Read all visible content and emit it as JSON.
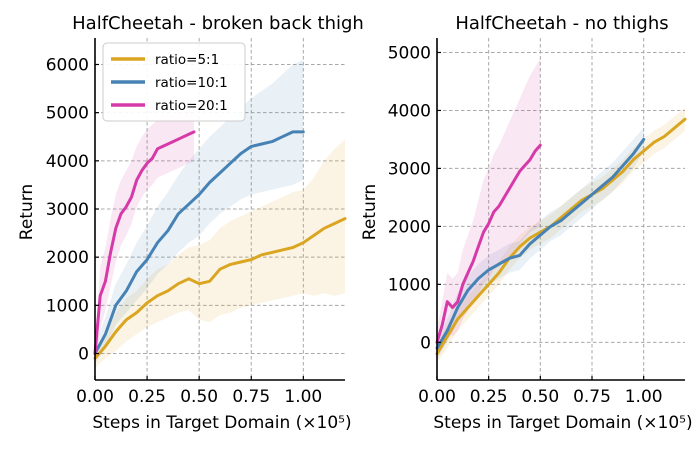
{
  "chart_data": [
    {
      "type": "line",
      "title": "HalfCheetah - broken back thigh",
      "xlabel": "Steps in Target Domain (×10⁵)",
      "ylabel": "Return",
      "xlim": [
        0,
        1.2
      ],
      "ylim": [
        -550,
        6550
      ],
      "xticks": [
        "0.00",
        "0.25",
        "0.50",
        "0.75",
        "1.00"
      ],
      "xtick_values": [
        0,
        0.25,
        0.5,
        0.75,
        1.0
      ],
      "yticks": [
        "0",
        "1000",
        "2000",
        "3000",
        "4000",
        "5000",
        "6000"
      ],
      "ytick_values": [
        0,
        1000,
        2000,
        3000,
        4000,
        5000,
        6000
      ],
      "grid": true,
      "legend": "top-left",
      "series": [
        {
          "name": "ratio=5:1",
          "color": "#daa520",
          "x": [
            0,
            0.05,
            0.1,
            0.15,
            0.2,
            0.25,
            0.3,
            0.35,
            0.4,
            0.45,
            0.5,
            0.55,
            0.6,
            0.65,
            0.7,
            0.75,
            0.8,
            0.85,
            0.9,
            0.95,
            1.0,
            1.05,
            1.1,
            1.15,
            1.2
          ],
          "values": [
            -100,
            150,
            450,
            700,
            850,
            1050,
            1200,
            1300,
            1450,
            1550,
            1450,
            1500,
            1750,
            1850,
            1900,
            1950,
            2050,
            2100,
            2150,
            2200,
            2300,
            2450,
            2600,
            2700,
            2800
          ],
          "lower": [
            -300,
            -100,
            50,
            250,
            400,
            550,
            650,
            750,
            850,
            900,
            700,
            650,
            800,
            850,
            950,
            1000,
            1050,
            1100,
            1150,
            1200,
            1250,
            1200,
            1250,
            1200,
            1250
          ],
          "upper": [
            100,
            400,
            850,
            1150,
            1300,
            1550,
            1750,
            1850,
            2050,
            2200,
            2250,
            2350,
            2600,
            2750,
            2850,
            2950,
            3050,
            3150,
            3250,
            3350,
            3400,
            3650,
            4000,
            4250,
            4450
          ]
        },
        {
          "name": "ratio=10:1",
          "color": "#4682b4",
          "x": [
            0,
            0.05,
            0.1,
            0.15,
            0.2,
            0.25,
            0.3,
            0.35,
            0.4,
            0.45,
            0.5,
            0.55,
            0.6,
            0.65,
            0.7,
            0.75,
            0.8,
            0.85,
            0.9,
            0.95,
            1.0
          ],
          "values": [
            0,
            400,
            1000,
            1300,
            1700,
            1950,
            2300,
            2550,
            2900,
            3100,
            3300,
            3550,
            3750,
            3950,
            4150,
            4300,
            4350,
            4400,
            4500,
            4600,
            4600
          ],
          "lower": [
            -200,
            100,
            600,
            850,
            1100,
            1350,
            1650,
            1850,
            2100,
            2300,
            2450,
            2700,
            2900,
            3050,
            3200,
            3300,
            3350,
            3400,
            3450,
            3500,
            3600
          ],
          "upper": [
            200,
            750,
            1450,
            1850,
            2300,
            2650,
            3050,
            3350,
            3700,
            4000,
            4250,
            4500,
            4700,
            4900,
            5100,
            5300,
            5450,
            5600,
            5800,
            6000,
            6100
          ]
        },
        {
          "name": "ratio=20:1",
          "color": "#d63aa8",
          "x": [
            0,
            0.025,
            0.05,
            0.075,
            0.1,
            0.125,
            0.15,
            0.175,
            0.2,
            0.225,
            0.25,
            0.275,
            0.3,
            0.325,
            0.35,
            0.375,
            0.4,
            0.425,
            0.45,
            0.475
          ],
          "values": [
            0,
            1200,
            1500,
            2100,
            2600,
            2900,
            3050,
            3250,
            3600,
            3800,
            3950,
            4050,
            4250,
            4300,
            4350,
            4400,
            4450,
            4500,
            4550,
            4600
          ],
          "lower": [
            -200,
            500,
            900,
            1400,
            1900,
            2250,
            2450,
            2700,
            3050,
            3250,
            3400,
            3500,
            3650,
            3700,
            3750,
            3800,
            3850,
            3900,
            3950,
            4000
          ],
          "upper": [
            200,
            1800,
            2200,
            2800,
            3300,
            3600,
            3800,
            4000,
            4300,
            4500,
            4650,
            4750,
            4850,
            4900,
            4950,
            4950,
            5000,
            5000,
            5100,
            5100
          ]
        }
      ]
    },
    {
      "type": "line",
      "title": "HalfCheetah - no thighs",
      "xlabel": "Steps in Target Domain (×10⁵)",
      "ylabel": "Return",
      "xlim": [
        0,
        1.2
      ],
      "ylim": [
        -650,
        5250
      ],
      "xticks": [
        "0.00",
        "0.25",
        "0.50",
        "0.75",
        "1.00"
      ],
      "xtick_values": [
        0,
        0.25,
        0.5,
        0.75,
        1.0
      ],
      "yticks": [
        "0",
        "1000",
        "2000",
        "3000",
        "4000",
        "5000"
      ],
      "ytick_values": [
        0,
        1000,
        2000,
        3000,
        4000,
        5000
      ],
      "grid": true,
      "legend": "",
      "series": [
        {
          "name": "ratio=5:1",
          "color": "#daa520",
          "x": [
            0,
            0.05,
            0.1,
            0.15,
            0.2,
            0.25,
            0.3,
            0.35,
            0.4,
            0.45,
            0.5,
            0.55,
            0.6,
            0.65,
            0.7,
            0.75,
            0.8,
            0.85,
            0.9,
            0.95,
            1.0,
            1.05,
            1.1,
            1.15,
            1.2
          ],
          "values": [
            -200,
            100,
            400,
            600,
            800,
            1000,
            1200,
            1450,
            1650,
            1800,
            1900,
            2000,
            2150,
            2300,
            2450,
            2550,
            2650,
            2800,
            2950,
            3150,
            3300,
            3450,
            3550,
            3700,
            3850
          ],
          "lower": [
            -350,
            -100,
            200,
            400,
            600,
            800,
            1000,
            1250,
            1450,
            1600,
            1700,
            1800,
            1950,
            2100,
            2250,
            2350,
            2450,
            2600,
            2750,
            2950,
            3100,
            3250,
            3350,
            3500,
            3650
          ],
          "upper": [
            -50,
            300,
            600,
            800,
            1000,
            1200,
            1400,
            1650,
            1850,
            2000,
            2100,
            2200,
            2350,
            2500,
            2650,
            2750,
            2850,
            3000,
            3150,
            3350,
            3500,
            3650,
            3750,
            3900,
            4050
          ]
        },
        {
          "name": "ratio=10:1",
          "color": "#4682b4",
          "x": [
            0,
            0.05,
            0.1,
            0.15,
            0.2,
            0.25,
            0.3,
            0.35,
            0.4,
            0.45,
            0.5,
            0.55,
            0.6,
            0.65,
            0.7,
            0.75,
            0.8,
            0.85,
            0.9,
            0.95,
            1.0
          ],
          "values": [
            -100,
            200,
            600,
            900,
            1100,
            1250,
            1350,
            1450,
            1500,
            1700,
            1850,
            2000,
            2100,
            2250,
            2400,
            2550,
            2700,
            2850,
            3050,
            3250,
            3500
          ],
          "lower": [
            -300,
            0,
            350,
            650,
            850,
            1000,
            1100,
            1200,
            1250,
            1450,
            1600,
            1750,
            1850,
            2000,
            2150,
            2300,
            2450,
            2600,
            2800,
            3000,
            3300
          ],
          "upper": [
            100,
            400,
            850,
            1150,
            1350,
            1500,
            1600,
            1700,
            1750,
            1950,
            2100,
            2250,
            2350,
            2500,
            2650,
            2800,
            2950,
            3100,
            3300,
            3500,
            3700
          ]
        },
        {
          "name": "ratio=20:1",
          "color": "#d63aa8",
          "x": [
            0,
            0.025,
            0.05,
            0.075,
            0.1,
            0.125,
            0.15,
            0.175,
            0.2,
            0.225,
            0.25,
            0.275,
            0.3,
            0.325,
            0.35,
            0.375,
            0.4,
            0.425,
            0.45,
            0.475,
            0.5
          ],
          "values": [
            0,
            300,
            700,
            600,
            700,
            1000,
            1200,
            1400,
            1650,
            1900,
            2050,
            2250,
            2350,
            2500,
            2650,
            2800,
            2950,
            3050,
            3150,
            3300,
            3400
          ],
          "lower": [
            -250,
            -100,
            200,
            100,
            200,
            400,
            550,
            700,
            850,
            1000,
            1100,
            1250,
            1300,
            1400,
            1500,
            1600,
            1700,
            1800,
            1900,
            1950,
            2000
          ],
          "upper": [
            250,
            700,
            1200,
            1100,
            1200,
            1600,
            1850,
            2100,
            2450,
            2800,
            3000,
            3250,
            3400,
            3600,
            3800,
            4000,
            4200,
            4400,
            4600,
            4750,
            4900
          ]
        }
      ]
    }
  ]
}
